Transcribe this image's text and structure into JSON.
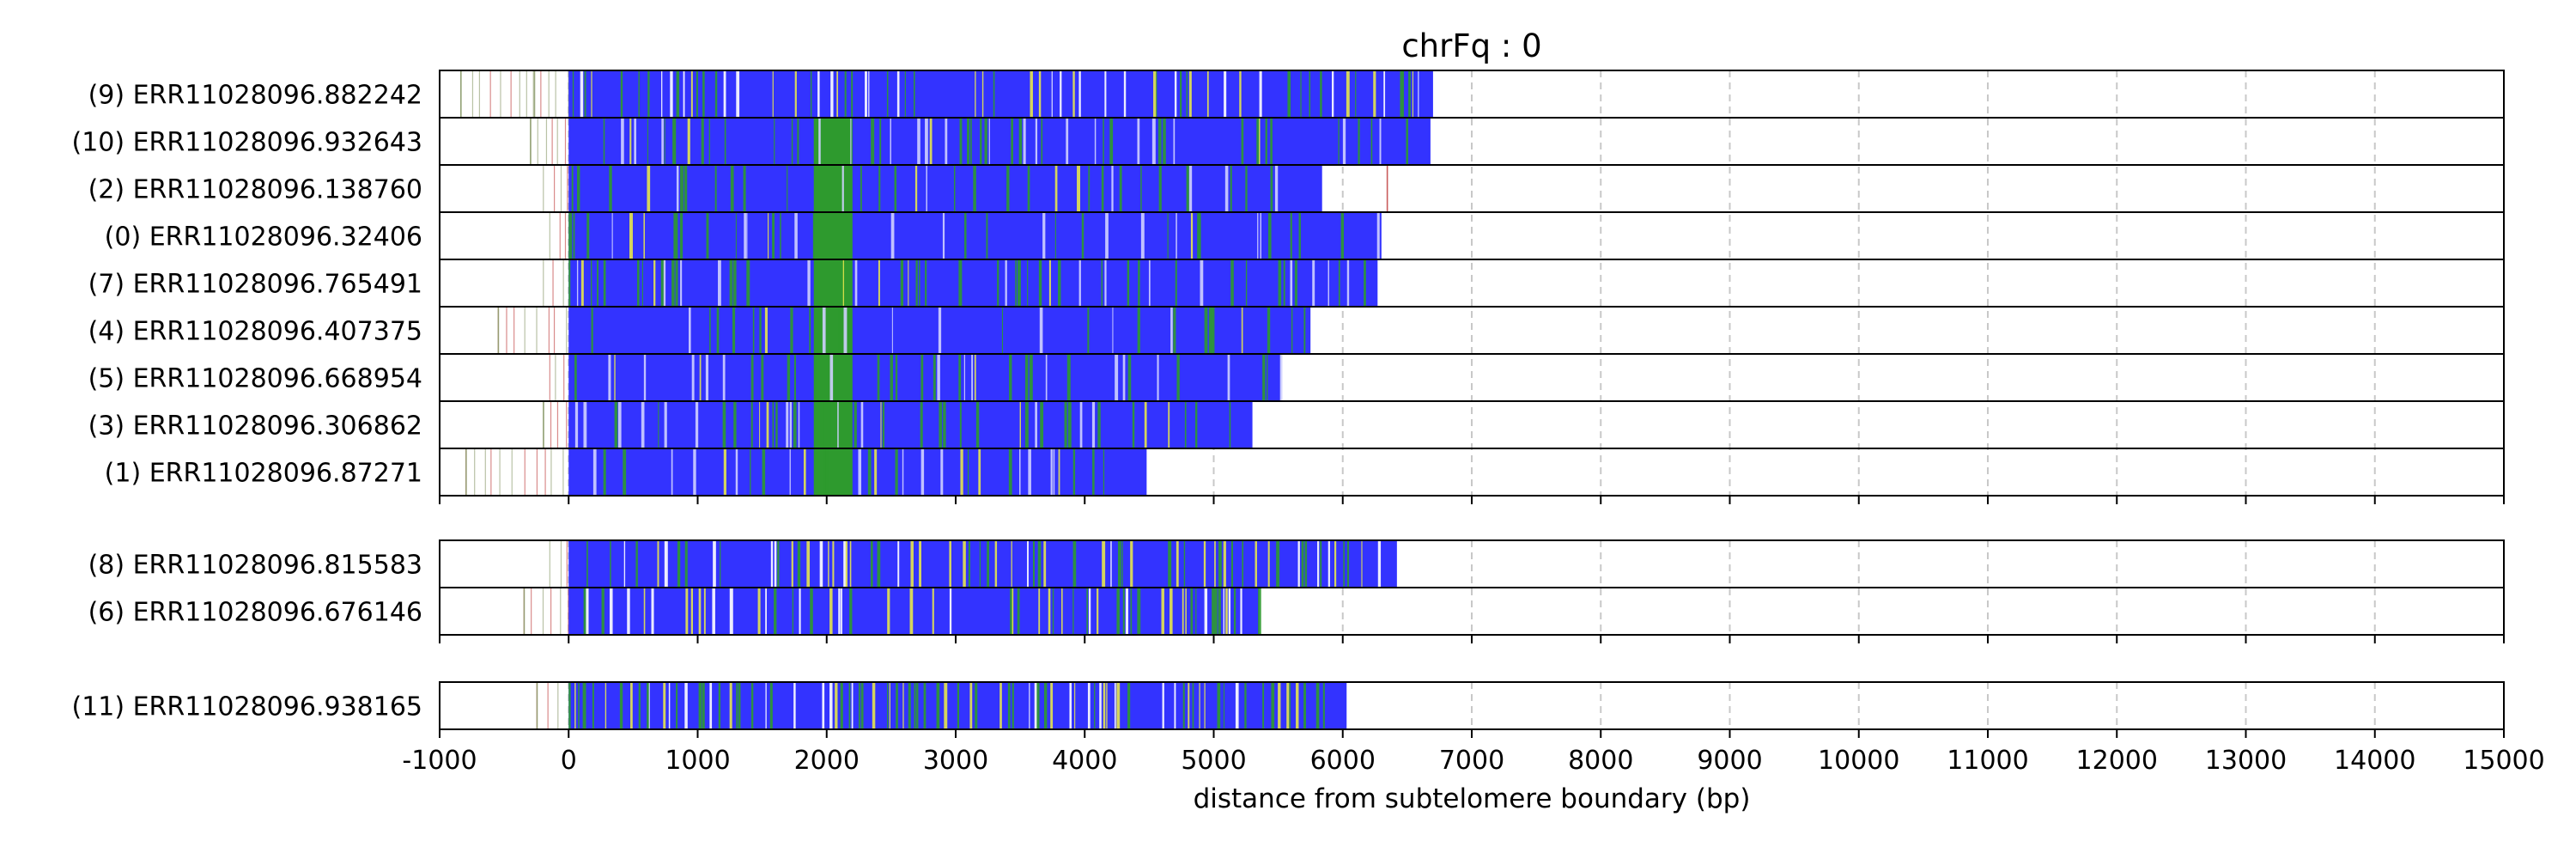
{
  "chart_data": {
    "type": "read-track",
    "title": "chrFq : 0",
    "xlabel": "distance from subtelomere boundary (bp)",
    "xlim": [
      -1000,
      15000
    ],
    "xticks": [
      -1000,
      0,
      1000,
      2000,
      3000,
      4000,
      5000,
      6000,
      7000,
      8000,
      9000,
      10000,
      11000,
      12000,
      13000,
      14000,
      15000
    ],
    "grid": "vertical dashed",
    "colors": {
      "main": "#3333ff",
      "alt": "#2e9a2e",
      "var": "#e6e64d",
      "thin": "#8a9a6a",
      "red": "#c04040",
      "border": "#000000",
      "grid": "#c8c8c8"
    },
    "groups": [
      {
        "reads": [
          {
            "label": "(9) ERR11028096.882242",
            "x_start": -840,
            "x_end": 6700,
            "blue_start": 0,
            "pattern": "yellowish",
            "outliers": [
              -840,
              -270
            ]
          },
          {
            "label": "(10) ERR11028096.932643",
            "x_start": -300,
            "x_end": 6680,
            "blue_start": 0,
            "pattern": "greenband",
            "outliers": [
              -300
            ]
          },
          {
            "label": "(2) ERR11028096.138760",
            "x_start": -200,
            "x_end": 5840,
            "blue_start": 0,
            "pattern": "greenband",
            "outliers": [
              6340
            ]
          },
          {
            "label": "(0) ERR11028096.32406",
            "x_start": -150,
            "x_end": 6300,
            "blue_start": 0,
            "pattern": "greenband",
            "outliers": []
          },
          {
            "label": "(7) ERR11028096.765491",
            "x_start": -200,
            "x_end": 6270,
            "blue_start": 0,
            "pattern": "greenband",
            "outliers": []
          },
          {
            "label": "(4) ERR11028096.407375",
            "x_start": -550,
            "x_end": 5750,
            "blue_start": 0,
            "pattern": "greenband",
            "outliers": [
              -550
            ]
          },
          {
            "label": "(5) ERR11028096.668954",
            "x_start": -150,
            "x_end": 5520,
            "blue_start": 0,
            "pattern": "greenband",
            "outliers": []
          },
          {
            "label": "(3) ERR11028096.306862",
            "x_start": -200,
            "x_end": 5300,
            "blue_start": 0,
            "pattern": "greenband",
            "outliers": [
              -200
            ]
          },
          {
            "label": "(1) ERR11028096.87271",
            "x_start": -800,
            "x_end": 4480,
            "blue_start": 0,
            "pattern": "greenband",
            "outliers": [
              -800
            ]
          }
        ]
      },
      {
        "reads": [
          {
            "label": "(8) ERR11028096.815583",
            "x_start": -150,
            "x_end": 6420,
            "blue_start": 0,
            "pattern": "mixed",
            "outliers": []
          },
          {
            "label": "(6) ERR11028096.676146",
            "x_start": -350,
            "x_end": 5350,
            "blue_start": 0,
            "pattern": "mixed",
            "outliers": [
              -350
            ]
          }
        ]
      },
      {
        "reads": [
          {
            "label": "(11) ERR11028096.938165",
            "x_start": -250,
            "x_end": 6030,
            "blue_start": 0,
            "pattern": "sparse",
            "outliers": [
              -250
            ]
          }
        ]
      }
    ]
  }
}
